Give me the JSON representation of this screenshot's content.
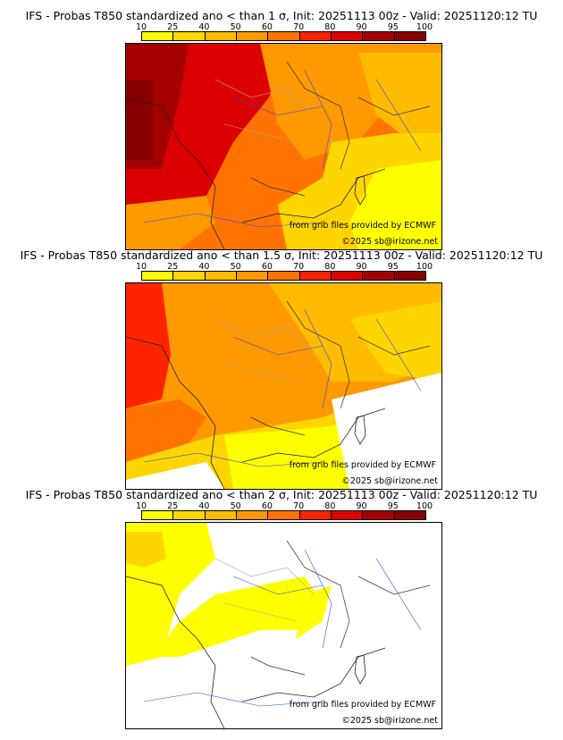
{
  "colorbar": {
    "ticks": [
      "10",
      "25",
      "40",
      "50",
      "60",
      "70",
      "80",
      "90",
      "95",
      "100"
    ],
    "colors": [
      "#ffff00",
      "#ffd500",
      "#ffbb00",
      "#ff9900",
      "#ff7400",
      "#ff2400",
      "#dd0000",
      "#a50000",
      "#870000",
      "#5c0000"
    ]
  },
  "panels": [
    {
      "title": "IFS - Probas T850  standardized ano < than 1 σ, Init: 20251113 00z - Valid: 20251120:12 TU"
    },
    {
      "title": "IFS - Probas T850  standardized ano < than 1.5 σ, Init: 20251113 00z - Valid: 20251120:12 TU"
    },
    {
      "title": "IFS - Probas T850  standardized ano < than 2 σ, Init: 20251113 00z - Valid: 20251120:12 TU"
    }
  ],
  "credits": {
    "source": "from grib files provided by ECMWF",
    "copyright": "©2025 sb@irizone.net"
  }
}
